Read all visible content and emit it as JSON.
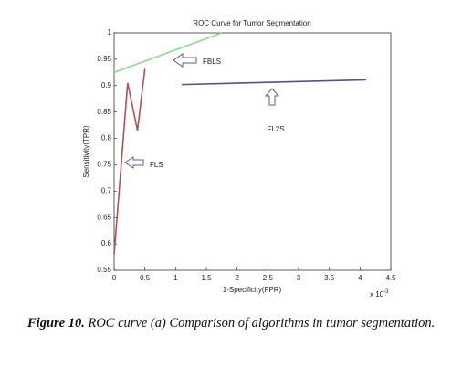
{
  "chart_data": {
    "type": "line",
    "title": "ROC Curve for Tumor Segmentation",
    "x_label": "1-Specificity(FPR)",
    "y_label": "Sensitivity(TPR)",
    "x_multiplier": {
      "base": "x 10",
      "exponent": "-3"
    },
    "xlim": [
      0,
      4.5
    ],
    "xticks": [
      0,
      0.5,
      1,
      1.5,
      2,
      2.5,
      3,
      3.5,
      4,
      4.5
    ],
    "ylim": [
      0.55,
      1
    ],
    "yticks": [
      0.55,
      0.6,
      0.65,
      0.7,
      0.75,
      0.8,
      0.85,
      0.9,
      0.95,
      1
    ],
    "series": [
      {
        "name": "FBLS",
        "color": "#8fd88f",
        "x": [
          0,
          1.75
        ],
        "values": [
          0.925,
          1.0
        ]
      },
      {
        "name": "FL2S",
        "color": "#5a4f8c",
        "x": [
          1.1,
          4.1
        ],
        "values": [
          0.902,
          0.911
        ]
      },
      {
        "name": "FLS",
        "color": "#b5504f",
        "x": [
          0,
          0.22,
          0.38,
          0.5
        ],
        "values": [
          0.58,
          0.905,
          0.815,
          0.932
        ]
      }
    ]
  },
  "caption": {
    "label": "Figure 10.",
    "text": "ROC curve (a) Comparison of algorithms in tumor segmentation."
  }
}
